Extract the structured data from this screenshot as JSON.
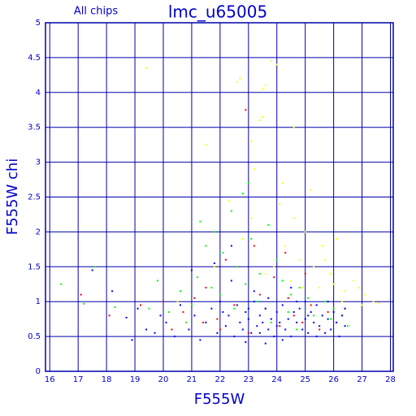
{
  "chart_data": {
    "type": "scatter",
    "title": "lmc_u65005",
    "subtitle": "All chips",
    "x_label": "F555W",
    "y_label": "F555W chi",
    "xlim": [
      15.85,
      28.1
    ],
    "ylim": [
      0,
      5
    ],
    "xticks": [
      16,
      17,
      18,
      19,
      20,
      21,
      22,
      23,
      24,
      25,
      26,
      27,
      28
    ],
    "yticks": [
      0,
      0.5,
      1,
      1.5,
      2,
      2.5,
      3,
      3.5,
      4,
      4.5,
      5
    ],
    "grid": true,
    "grid_color": "#0000aa",
    "text_color": "#0000cc",
    "series": [
      {
        "color": "#ffff00",
        "x": [
          22.6,
          22.7,
          23.5,
          23.6,
          23.4,
          23.5,
          23.8,
          24.0,
          24.6,
          19.4,
          23.1,
          21.5,
          22.3,
          24.2,
          23.2,
          24.6,
          25.0,
          25.6,
          26.1,
          24.8,
          25.3,
          24.5,
          26.3,
          26.9,
          27.1,
          26.7,
          27.4,
          27.0,
          25.9,
          24.9,
          23.9,
          25.5,
          26.0,
          24.3,
          23.6,
          22.8,
          21.8,
          20.5,
          25.7,
          26.4,
          27.6,
          23.1,
          24.1,
          25.2
        ],
        "y": [
          4.15,
          4.2,
          4.05,
          4.1,
          3.6,
          3.65,
          4.45,
          4.4,
          3.5,
          4.35,
          3.3,
          3.25,
          2.45,
          2.7,
          2.9,
          2.2,
          2.0,
          1.8,
          1.9,
          1.6,
          1.5,
          1.3,
          1.0,
          1.2,
          1.1,
          1.3,
          1.0,
          0.95,
          1.4,
          1.2,
          1.5,
          1.2,
          1.25,
          1.8,
          1.4,
          1.9,
          1.5,
          1.0,
          1.6,
          1.15,
          0.98,
          2.2,
          2.4,
          2.6
        ]
      },
      {
        "color": "#00ff00",
        "x": [
          16.4,
          17.2,
          17.6,
          18.3,
          19.8,
          20.6,
          21.3,
          21.5,
          21.8,
          22.1,
          22.4,
          22.6,
          22.8,
          23.0,
          23.1,
          23.4,
          23.7,
          24.0,
          24.2,
          24.5,
          24.8,
          25.1,
          25.4,
          25.7,
          26.0,
          26.3,
          22.0,
          21.0,
          20.2,
          19.5,
          23.3,
          22.5,
          21.7,
          24.4,
          25.9,
          26.5,
          23.8,
          22.9,
          21.2,
          20.8,
          24.7,
          25.3
        ],
        "y": [
          1.25,
          0.97,
          1.5,
          0.92,
          1.3,
          1.15,
          2.15,
          1.8,
          2.0,
          1.7,
          2.3,
          1.5,
          2.55,
          2.7,
          1.9,
          1.4,
          2.1,
          1.6,
          1.3,
          1.1,
          1.2,
          1.05,
          0.95,
          1.0,
          0.9,
          0.8,
          1.1,
          0.95,
          0.85,
          0.9,
          1.0,
          0.9,
          1.2,
          0.85,
          0.75,
          0.65,
          0.7,
          1.25,
          1.35,
          0.7,
          0.6,
          0.8
        ]
      },
      {
        "color": "#ff0000",
        "x": [
          17.1,
          18.1,
          19.2,
          20.0,
          20.7,
          21.1,
          21.5,
          21.9,
          22.2,
          22.5,
          22.9,
          23.2,
          23.4,
          23.6,
          23.9,
          24.1,
          24.4,
          24.6,
          24.9,
          25.2,
          25.5,
          25.8,
          26.1,
          26.4,
          22.0,
          23.0,
          24.3,
          25.0,
          21.4,
          20.3
        ],
        "y": [
          1.1,
          0.8,
          0.95,
          1.0,
          0.85,
          1.05,
          1.2,
          0.75,
          1.6,
          0.95,
          3.75,
          1.8,
          1.1,
          0.9,
          1.35,
          0.65,
          1.05,
          0.8,
          0.7,
          0.95,
          0.6,
          0.85,
          0.7,
          0.9,
          0.6,
          0.55,
          1.7,
          1.4,
          0.7,
          0.6
        ]
      },
      {
        "color": "#0000ff",
        "x": [
          18.7,
          18.9,
          19.1,
          19.4,
          19.7,
          19.9,
          20.1,
          20.4,
          20.6,
          20.9,
          21.1,
          21.3,
          21.5,
          21.7,
          21.9,
          22.0,
          22.2,
          22.3,
          22.5,
          22.6,
          22.7,
          22.8,
          22.9,
          23.0,
          23.1,
          23.2,
          23.3,
          23.4,
          23.5,
          23.6,
          23.7,
          23.8,
          23.9,
          24.0,
          24.1,
          24.2,
          24.3,
          24.4,
          24.5,
          24.6,
          24.7,
          24.8,
          24.9,
          25.0,
          25.1,
          25.2,
          25.3,
          25.4,
          25.5,
          25.6,
          25.7,
          25.8,
          25.9,
          26.0,
          26.1,
          26.2,
          26.3,
          26.4,
          23.2,
          24.5,
          22.4,
          21.8,
          23.7,
          25.0,
          23.6,
          24.2,
          25.4,
          22.9,
          18.2,
          17.5,
          21.0,
          22.4,
          23.0,
          24.0,
          25.1,
          24.7,
          23.4,
          22.1,
          25.8,
          26.4
        ],
        "y": [
          0.77,
          0.45,
          0.9,
          0.6,
          0.55,
          0.8,
          0.7,
          0.5,
          0.95,
          0.6,
          0.8,
          0.45,
          0.7,
          0.9,
          0.55,
          1.0,
          0.65,
          0.8,
          0.5,
          0.95,
          0.7,
          0.6,
          0.85,
          0.75,
          0.55,
          1.0,
          0.65,
          0.8,
          0.7,
          0.9,
          0.6,
          0.75,
          0.5,
          0.85,
          0.7,
          0.95,
          0.6,
          0.75,
          0.5,
          0.85,
          0.7,
          0.9,
          0.6,
          0.75,
          0.55,
          0.85,
          0.7,
          0.95,
          0.65,
          0.8,
          0.55,
          0.75,
          0.6,
          0.85,
          0.7,
          0.5,
          0.8,
          0.65,
          1.15,
          1.2,
          1.3,
          1.55,
          1.05,
          1.0,
          0.4,
          0.45,
          0.5,
          0.42,
          1.15,
          1.45,
          1.45,
          1.8,
          0.9,
          0.65,
          0.8,
          1.0,
          0.55,
          0.85,
          1.0,
          0.9
        ]
      }
    ]
  }
}
